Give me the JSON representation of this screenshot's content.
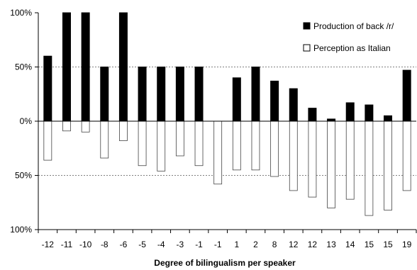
{
  "chart_data": {
    "type": "bar",
    "title": "",
    "xlabel": "Degree of bilingualism per speaker",
    "ylabel": "",
    "categories": [
      "-12",
      "-11",
      "-10",
      "-8",
      "-6",
      "-5",
      "-4",
      "-3",
      "-1",
      "-1",
      "1",
      "2",
      "8",
      "12",
      "12",
      "13",
      "14",
      "15",
      "15",
      "19"
    ],
    "series": [
      {
        "name": "Production of back /r/",
        "color": "#000000",
        "values": [
          60,
          100,
          100,
          50,
          100,
          50,
          50,
          50,
          50,
          0,
          40,
          50,
          37,
          30,
          12,
          2,
          17,
          15,
          5,
          47
        ]
      },
      {
        "name": "Perception as Italian",
        "color": "#ffffff",
        "values": [
          36,
          9,
          10,
          34,
          18,
          41,
          46,
          32,
          41,
          58,
          45,
          45,
          51,
          64,
          70,
          80,
          72,
          87,
          82,
          64
        ]
      }
    ],
    "ylim": [
      -100,
      100
    ],
    "y_ticks": [
      {
        "value": 100,
        "label": "100%"
      },
      {
        "value": 50,
        "label": "50%"
      },
      {
        "value": 0,
        "label": "0%"
      },
      {
        "value": -50,
        "label": "50%"
      },
      {
        "value": -100,
        "label": "100%"
      }
    ],
    "grid": "dotted at 50% lines",
    "legend_position": "top-right"
  }
}
